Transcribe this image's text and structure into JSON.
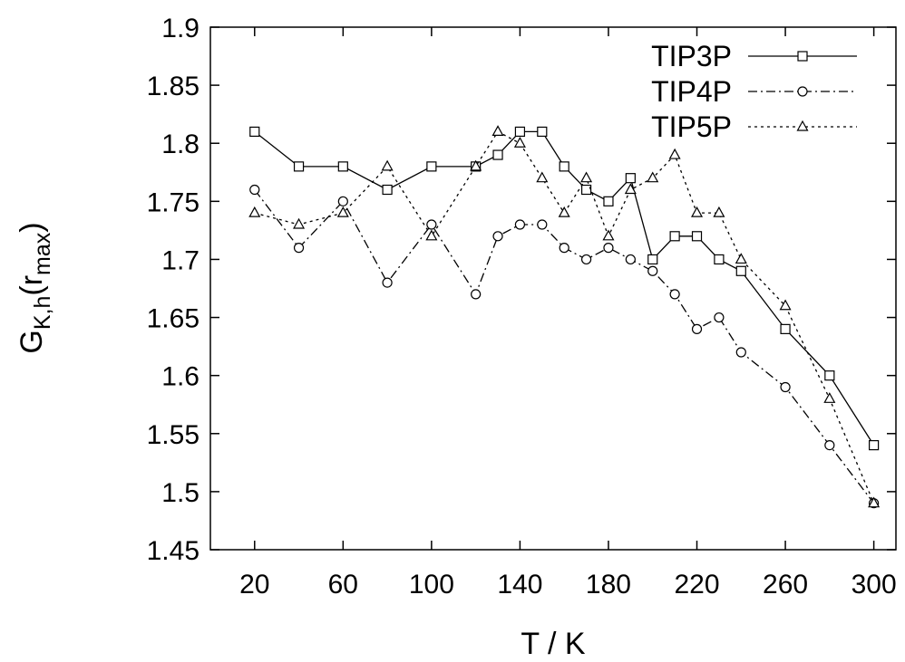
{
  "chart_data": {
    "type": "line",
    "xlabel": "T / K",
    "ylabel": {
      "main": "G",
      "sub1": "K,h",
      "paren_open": "(r",
      "sub2": "max",
      "paren_close": ")"
    },
    "xlim": [
      0,
      310
    ],
    "ylim": [
      1.45,
      1.9
    ],
    "xticks": [
      "20",
      "60",
      "100",
      "140",
      "180",
      "220",
      "260",
      "300"
    ],
    "yticks": [
      "1.45",
      "1.5",
      "1.55",
      "1.6",
      "1.65",
      "1.7",
      "1.75",
      "1.8",
      "1.85",
      "1.9"
    ],
    "grid": false,
    "legend_position": "top-right",
    "series": [
      {
        "name": "TIP3P",
        "marker": "square",
        "dash": "solid",
        "x": [
          20,
          40,
          60,
          80,
          100,
          120,
          130,
          140,
          150,
          160,
          170,
          180,
          190,
          200,
          210,
          220,
          230,
          240,
          260,
          280,
          300
        ],
        "y": [
          1.81,
          1.78,
          1.78,
          1.76,
          1.78,
          1.78,
          1.79,
          1.81,
          1.81,
          1.78,
          1.76,
          1.75,
          1.77,
          1.7,
          1.72,
          1.72,
          1.7,
          1.69,
          1.64,
          1.6,
          1.54
        ]
      },
      {
        "name": "TIP4P",
        "marker": "circle",
        "dash": "dashdot",
        "x": [
          20,
          40,
          60,
          80,
          100,
          120,
          130,
          140,
          150,
          160,
          170,
          180,
          190,
          200,
          210,
          220,
          230,
          240,
          260,
          280,
          300
        ],
        "y": [
          1.76,
          1.71,
          1.75,
          1.68,
          1.73,
          1.67,
          1.72,
          1.73,
          1.73,
          1.71,
          1.7,
          1.71,
          1.7,
          1.69,
          1.67,
          1.64,
          1.65,
          1.62,
          1.59,
          1.54,
          1.49
        ]
      },
      {
        "name": "TIP5P",
        "marker": "triangle",
        "dash": "dotted",
        "x": [
          20,
          40,
          60,
          80,
          100,
          120,
          130,
          140,
          150,
          160,
          170,
          180,
          190,
          200,
          210,
          220,
          230,
          240,
          260,
          280,
          300
        ],
        "y": [
          1.74,
          1.73,
          1.74,
          1.78,
          1.72,
          1.78,
          1.81,
          1.8,
          1.77,
          1.74,
          1.77,
          1.72,
          1.76,
          1.77,
          1.79,
          1.74,
          1.74,
          1.7,
          1.66,
          1.58,
          1.49
        ]
      }
    ]
  }
}
